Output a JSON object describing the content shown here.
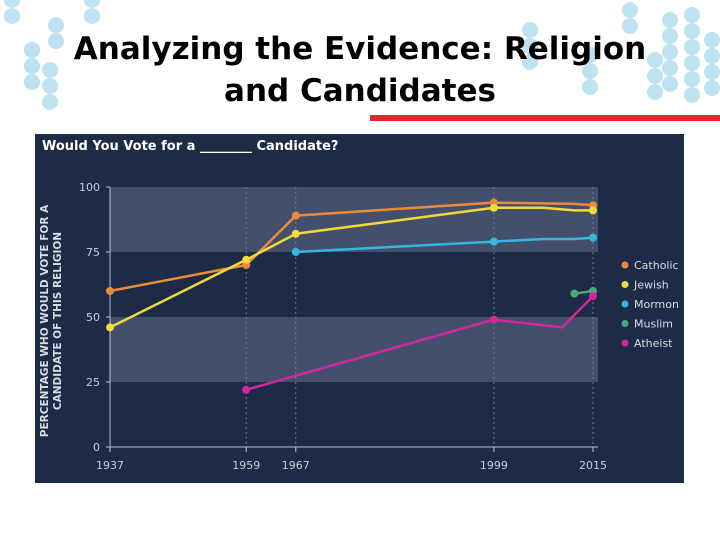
{
  "slide": {
    "title_line1": "Analyzing the Evidence: Religion",
    "title_line2": "and Candidates"
  },
  "colors": {
    "panel_bg": "#1d2b46",
    "band": "#44506b",
    "accent_rule": "#e8222e",
    "dot_decor": "#a8d8ea"
  },
  "chart_data": {
    "type": "line",
    "title": "Would You Vote for a ________ Candidate?",
    "ylabel_line1": "PERCENTAGE WHO WOULD VOTE FOR A",
    "ylabel_line2": "CANDIDATE OF THIS RELIGION",
    "xlabel": "",
    "x_ticks": [
      1937,
      1959,
      1967,
      1999,
      2015
    ],
    "y_ticks": [
      0,
      25,
      50,
      75,
      100
    ],
    "xlim": [
      1937,
      2015
    ],
    "ylim": [
      0,
      100
    ],
    "legend_position": "right",
    "grid": "horizontal bands",
    "series": [
      {
        "name": "Catholic",
        "color": "#ed8a3a",
        "points": [
          [
            1937,
            60
          ],
          [
            1959,
            70
          ],
          [
            1967,
            89
          ],
          [
            1999,
            94
          ],
          [
            2012,
            93.5
          ],
          [
            2015,
            93
          ]
        ],
        "markers": [
          1937,
          1959,
          1967,
          1999,
          2015
        ]
      },
      {
        "name": "Jewish",
        "color": "#f3da3b",
        "points": [
          [
            1937,
            46
          ],
          [
            1959,
            72
          ],
          [
            1967,
            82
          ],
          [
            1999,
            92
          ],
          [
            2007,
            92
          ],
          [
            2012,
            91
          ],
          [
            2015,
            91
          ]
        ],
        "markers": [
          1937,
          1959,
          1967,
          1999,
          2015
        ]
      },
      {
        "name": "Mormon",
        "color": "#34b7e0",
        "points": [
          [
            1967,
            75
          ],
          [
            1999,
            79
          ],
          [
            2007,
            80
          ],
          [
            2012,
            80
          ],
          [
            2015,
            80.5
          ]
        ],
        "markers": [
          1967,
          1999,
          2015
        ]
      },
      {
        "name": "Muslim",
        "color": "#4ca97c",
        "points": [
          [
            2012,
            59
          ],
          [
            2015,
            60
          ]
        ],
        "markers": [
          2012,
          2015
        ]
      },
      {
        "name": "Atheist",
        "color": "#d1279e",
        "points": [
          [
            1959,
            22
          ],
          [
            1999,
            49
          ],
          [
            2010,
            46
          ],
          [
            2015,
            58
          ]
        ],
        "markers": [
          1959,
          1999,
          2015
        ]
      }
    ]
  }
}
